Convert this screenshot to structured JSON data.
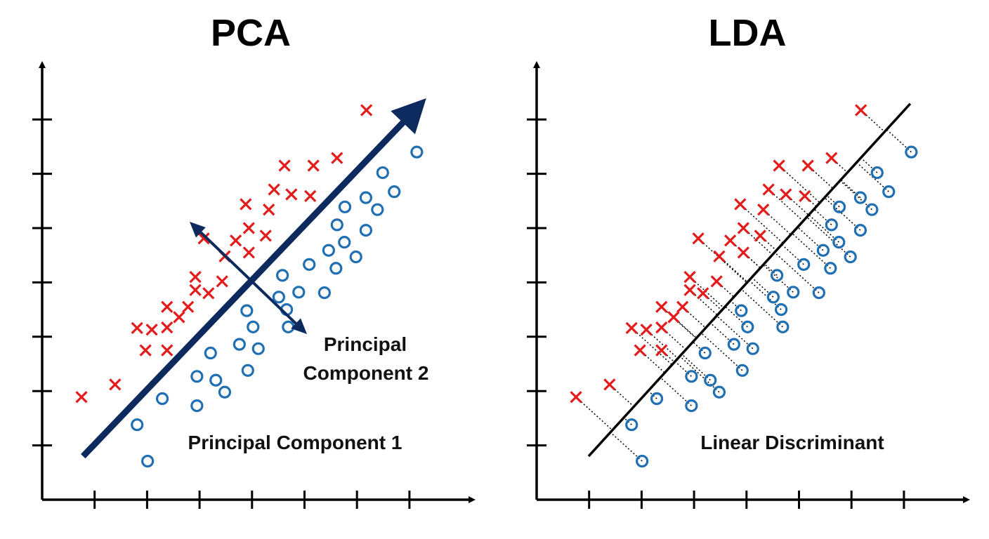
{
  "panels": [
    {
      "title": "PCA",
      "labels": {
        "pc1": "Principal Component 1",
        "pc2_line1": "Principal",
        "pc2_line2": "Component 2"
      }
    },
    {
      "title": "LDA",
      "labels": {
        "ld": "Linear Discriminant"
      }
    }
  ],
  "colors": {
    "class_x": "#e31b1b",
    "class_o": "#1f6fb2",
    "pca_axis": "#0d2a5e",
    "lda_line": "#000000",
    "axes": "#000000"
  },
  "chart_data": {
    "type": "scatter",
    "axis_ticks": {
      "x": 7,
      "y": 7
    },
    "tick_labels": "none",
    "series": [
      {
        "marker": "x",
        "color": "#e31b1b",
        "points": [
          [
            0.75,
            1.89
          ],
          [
            1.39,
            2.12
          ],
          [
            1.81,
            3.16
          ],
          [
            2.09,
            3.13
          ],
          [
            2.38,
            3.17
          ],
          [
            2.38,
            3.55
          ],
          [
            1.97,
            2.75
          ],
          [
            2.38,
            2.75
          ],
          [
            2.61,
            3.36
          ],
          [
            2.78,
            3.55
          ],
          [
            2.92,
            4.1
          ],
          [
            2.92,
            3.86
          ],
          [
            3.17,
            3.8
          ],
          [
            3.43,
            4.02
          ],
          [
            3.08,
            4.81
          ],
          [
            3.48,
            4.48
          ],
          [
            3.69,
            4.77
          ],
          [
            3.94,
            4.55
          ],
          [
            3.94,
            5.0
          ],
          [
            3.88,
            5.44
          ],
          [
            4.26,
            4.86
          ],
          [
            4.32,
            5.34
          ],
          [
            4.42,
            5.71
          ],
          [
            4.62,
            6.15
          ],
          [
            4.75,
            5.62
          ],
          [
            5.17,
            6.15
          ],
          [
            5.11,
            5.59
          ],
          [
            5.62,
            6.29
          ],
          [
            6.18,
            7.17
          ]
        ]
      },
      {
        "marker": "o",
        "color": "#1f6fb2",
        "points": [
          [
            1.81,
            1.38
          ],
          [
            2.01,
            0.71
          ],
          [
            2.29,
            1.86
          ],
          [
            2.95,
            2.27
          ],
          [
            2.95,
            1.73
          ],
          [
            3.31,
            2.2
          ],
          [
            3.48,
            1.98
          ],
          [
            3.21,
            2.7
          ],
          [
            3.92,
            2.38
          ],
          [
            3.76,
            2.86
          ],
          [
            4.12,
            2.78
          ],
          [
            4.02,
            3.18
          ],
          [
            3.9,
            3.48
          ],
          [
            4.66,
            3.5
          ],
          [
            4.51,
            3.73
          ],
          [
            4.58,
            4.13
          ],
          [
            4.89,
            3.82
          ],
          [
            4.69,
            3.18
          ],
          [
            5.09,
            4.33
          ],
          [
            5.38,
            3.81
          ],
          [
            5.46,
            4.59
          ],
          [
            5.6,
            4.26
          ],
          [
            5.62,
            5.06
          ],
          [
            5.76,
            4.74
          ],
          [
            5.77,
            5.39
          ],
          [
            5.98,
            4.47
          ],
          [
            6.17,
            4.96
          ],
          [
            6.17,
            5.56
          ],
          [
            6.39,
            5.34
          ],
          [
            6.49,
            6.02
          ],
          [
            6.71,
            5.67
          ],
          [
            7.14,
            6.4
          ]
        ]
      }
    ]
  }
}
